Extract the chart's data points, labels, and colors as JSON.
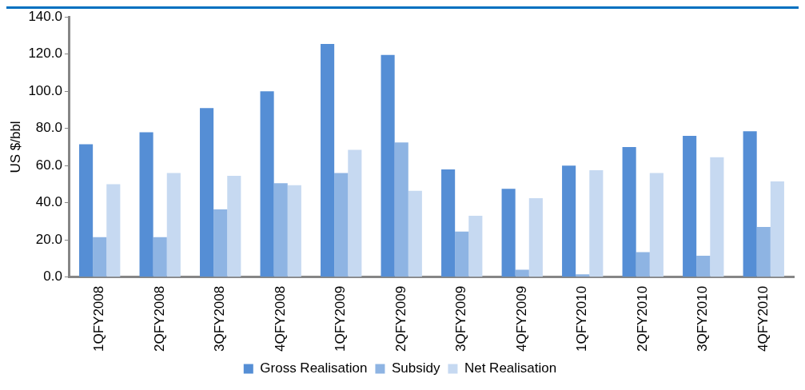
{
  "chart_data": {
    "type": "bar",
    "ylabel": "US $/bbl",
    "categories": [
      "1QFY2008",
      "2QFY2008",
      "3QFY2008",
      "4QFY2008",
      "1QFY2009",
      "2QFY2009",
      "3QFY2009",
      "4QFY2009",
      "1QFY2010",
      "2QFY2010",
      "3QFY2010",
      "4QFY2010"
    ],
    "series": [
      {
        "name": "Gross Realisation",
        "color": "#558ed5",
        "values": [
          71.5,
          78,
          91,
          100,
          125.5,
          119.5,
          58,
          47.5,
          60,
          70,
          76,
          78.5
        ]
      },
      {
        "name": "Subsidy",
        "color": "#8eb4e3",
        "values": [
          21.5,
          21.5,
          36.5,
          50.5,
          56,
          72.5,
          24.5,
          4,
          1.5,
          13.5,
          11.5,
          27
        ]
      },
      {
        "name": "Net Realisation",
        "color": "#c6d9f1",
        "values": [
          50,
          56,
          54.5,
          49.5,
          68.5,
          46.5,
          33,
          42.5,
          57.5,
          56,
          64.5,
          51.5
        ]
      }
    ],
    "ylim": [
      0,
      140
    ],
    "yticks": [
      {
        "value": 0,
        "label": "0.0"
      },
      {
        "value": 20,
        "label": "20.0"
      },
      {
        "value": 40,
        "label": "40.0"
      },
      {
        "value": 60,
        "label": "60.0"
      },
      {
        "value": 80,
        "label": "80.0"
      },
      {
        "value": 100,
        "label": "100.0"
      },
      {
        "value": 120,
        "label": "120.0"
      },
      {
        "value": 140,
        "label": "140.0"
      }
    ],
    "grid": false,
    "legend": "bottom"
  }
}
